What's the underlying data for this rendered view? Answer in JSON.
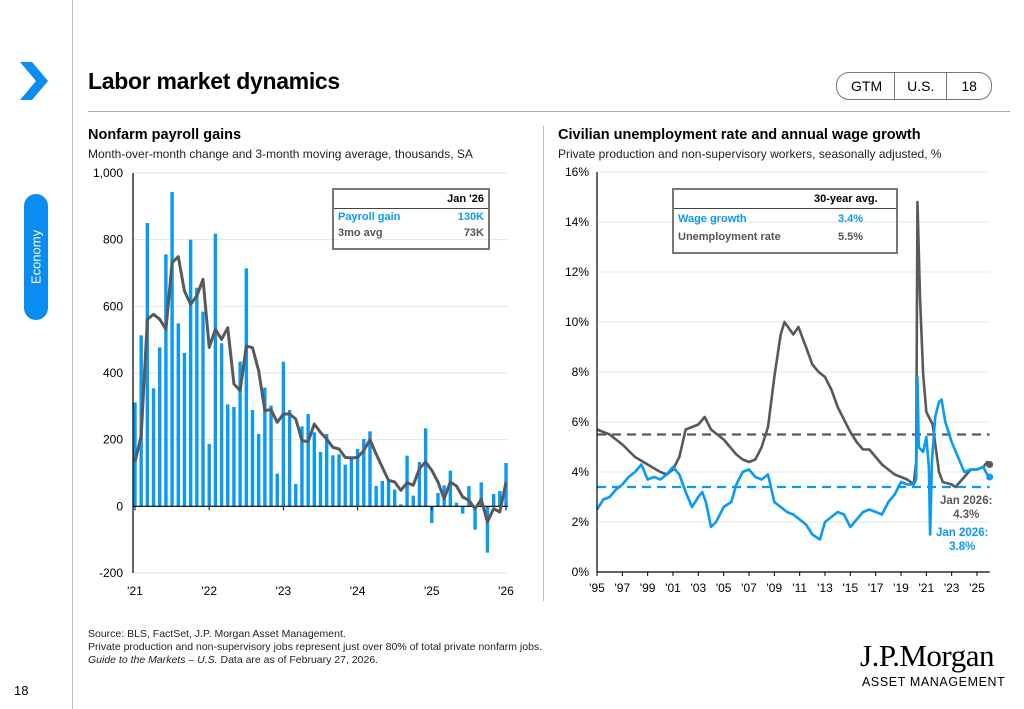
{
  "header": {
    "title": "Labor market dynamics",
    "badge": [
      "GTM",
      "U.S.",
      "18"
    ]
  },
  "sidebar": {
    "section": "Economy",
    "page_number": "18"
  },
  "colors": {
    "accent": "#0a8cf0",
    "blue_series": "#0a99f5",
    "gray_series": "#58595b"
  },
  "left": {
    "title": "Nonfarm payroll gains",
    "subtitle": "Month-over-month change and 3-month moving average, thousands, SA",
    "legend": {
      "header": "Jan '26",
      "rows": [
        {
          "label": "Payroll gain",
          "value": "130K"
        },
        {
          "label": "3mo avg",
          "value": "73K"
        }
      ]
    }
  },
  "right": {
    "title": "Civilian unemployment rate and annual wage growth",
    "subtitle": "Private production and non-supervisory workers, seasonally adjusted, %",
    "legend": {
      "header": "30-year avg.",
      "rows": [
        {
          "label": "Wage growth",
          "value": "3.4%"
        },
        {
          "label": "Unemployment rate",
          "value": "5.5%"
        }
      ]
    },
    "annotations": {
      "unemp_label": "Jan 2026:",
      "unemp_value": "4.3%",
      "wage_label": "Jan 2026:",
      "wage_value": "3.8%"
    }
  },
  "footer": {
    "source": "Source: BLS, FactSet, J.P. Morgan Asset Management.",
    "note": "Private production and non-supervisory jobs represent just over 80% of total private nonfarm jobs.",
    "guide_italic": "Guide to the Markets – U.S.",
    "guide_rest": " Data are as of February 27, 2026."
  },
  "logo": {
    "name": "J.P.Morgan",
    "sub": "ASSET MANAGEMENT"
  },
  "chart_data": [
    {
      "type": "bar",
      "title": "Nonfarm payroll gains",
      "ylim": [
        -200,
        1000
      ],
      "yticks": [
        "-200",
        "0",
        "200",
        "400",
        "600",
        "800",
        "1,000"
      ],
      "xtick_labels": [
        "'21",
        "'22",
        "'23",
        "'24",
        "'25",
        "'26"
      ],
      "series": [
        {
          "name": "Payroll gain",
          "type": "bar",
          "values": [
            312,
            513,
            850,
            354,
            477,
            756,
            943,
            549,
            460,
            800,
            656,
            584,
            187,
            818,
            489,
            306,
            298,
            434,
            714,
            289,
            217,
            356,
            302,
            98,
            434,
            289,
            67,
            240,
            277,
            222,
            163,
            217,
            153,
            156,
            125,
            150,
            172,
            202,
            225,
            61,
            76,
            76,
            50,
            6,
            152,
            32,
            133,
            234,
            -50,
            40,
            63,
            107,
            11,
            -22,
            61,
            -70,
            72,
            -139,
            37,
            46,
            130
          ]
        },
        {
          "name": "3mo avg",
          "type": "line",
          "values": [
            133,
            212,
            561,
            576,
            561,
            531,
            731,
            749,
            646,
            606,
            631,
            681,
            477,
            531,
            501,
            536,
            367,
            347,
            481,
            476,
            407,
            287,
            290,
            252,
            277,
            277,
            262,
            197,
            194,
            247,
            222,
            202,
            177,
            172,
            147,
            145,
            147,
            167,
            200,
            157,
            117,
            78,
            73,
            48,
            71,
            63,
            113,
            133,
            108,
            73,
            23,
            73,
            61,
            28,
            18,
            -7,
            21,
            -47,
            -7,
            -17,
            73
          ]
        }
      ]
    },
    {
      "type": "line",
      "title": "Civilian unemployment rate and annual wage growth",
      "ylim": [
        0,
        16
      ],
      "xlim": [
        1995,
        2026
      ],
      "yticks": [
        "0%",
        "2%",
        "4%",
        "6%",
        "8%",
        "10%",
        "12%",
        "14%",
        "16%"
      ],
      "xtick_labels": [
        "'95",
        "'97",
        "'99",
        "'01",
        "'03",
        "'05",
        "'07",
        "'09",
        "'11",
        "'13",
        "'15",
        "'17",
        "'19",
        "'21",
        "'23",
        "'25"
      ],
      "series": [
        {
          "name": "Unemployment rate",
          "average": 5.5,
          "points": [
            [
              1995,
              5.7
            ],
            [
              1996,
              5.5
            ],
            [
              1996.5,
              5.3
            ],
            [
              1997,
              5.1
            ],
            [
              1998,
              4.6
            ],
            [
              1999,
              4.3
            ],
            [
              2000,
              4.0
            ],
            [
              2000.5,
              3.9
            ],
            [
              2001,
              4.1
            ],
            [
              2001.5,
              4.6
            ],
            [
              2002,
              5.7
            ],
            [
              2002.5,
              5.8
            ],
            [
              2003,
              5.9
            ],
            [
              2003.5,
              6.2
            ],
            [
              2004,
              5.7
            ],
            [
              2005,
              5.3
            ],
            [
              2006,
              4.7
            ],
            [
              2006.5,
              4.5
            ],
            [
              2007,
              4.4
            ],
            [
              2007.5,
              4.5
            ],
            [
              2008,
              5.0
            ],
            [
              2008.5,
              5.8
            ],
            [
              2009,
              7.8
            ],
            [
              2009.5,
              9.5
            ],
            [
              2009.8,
              10.0
            ],
            [
              2010.5,
              9.5
            ],
            [
              2010.9,
              9.8
            ],
            [
              2011.5,
              9.0
            ],
            [
              2012,
              8.3
            ],
            [
              2012.5,
              8.0
            ],
            [
              2013,
              7.8
            ],
            [
              2013.5,
              7.3
            ],
            [
              2014,
              6.6
            ],
            [
              2014.5,
              6.1
            ],
            [
              2015,
              5.6
            ],
            [
              2015.5,
              5.2
            ],
            [
              2016,
              4.9
            ],
            [
              2016.5,
              4.9
            ],
            [
              2017,
              4.6
            ],
            [
              2017.5,
              4.3
            ],
            [
              2018,
              4.1
            ],
            [
              2018.5,
              3.9
            ],
            [
              2019,
              3.8
            ],
            [
              2019.5,
              3.7
            ],
            [
              2020,
              3.5
            ],
            [
              2020.2,
              4.4
            ],
            [
              2020.3,
              14.8
            ],
            [
              2020.5,
              11.0
            ],
            [
              2020.75,
              7.9
            ],
            [
              2021,
              6.4
            ],
            [
              2021.5,
              5.9
            ],
            [
              2022,
              4.0
            ],
            [
              2022.3,
              3.6
            ],
            [
              2023,
              3.5
            ],
            [
              2023.3,
              3.4
            ],
            [
              2024,
              3.8
            ],
            [
              2024.5,
              4.1
            ],
            [
              2025,
              4.1
            ],
            [
              2025.5,
              4.2
            ],
            [
              2025.8,
              4.4
            ],
            [
              2026,
              4.3
            ]
          ]
        },
        {
          "name": "Wage growth",
          "average": 3.4,
          "points": [
            [
              1995,
              2.5
            ],
            [
              1995.5,
              2.9
            ],
            [
              1996,
              3.0
            ],
            [
              1996.5,
              3.3
            ],
            [
              1997,
              3.5
            ],
            [
              1997.5,
              3.8
            ],
            [
              1998,
              4.0
            ],
            [
              1998.5,
              4.3
            ],
            [
              1999,
              3.7
            ],
            [
              1999.5,
              3.8
            ],
            [
              2000,
              3.7
            ],
            [
              2000.5,
              3.9
            ],
            [
              2001,
              4.2
            ],
            [
              2001.5,
              3.9
            ],
            [
              2002,
              3.2
            ],
            [
              2002.5,
              2.6
            ],
            [
              2003,
              3.0
            ],
            [
              2003.3,
              3.2
            ],
            [
              2003.6,
              2.8
            ],
            [
              2004,
              1.8
            ],
            [
              2004.4,
              2.0
            ],
            [
              2005,
              2.6
            ],
            [
              2005.6,
              2.8
            ],
            [
              2006,
              3.5
            ],
            [
              2006.5,
              4.0
            ],
            [
              2007,
              4.1
            ],
            [
              2007.5,
              3.8
            ],
            [
              2008,
              3.7
            ],
            [
              2008.5,
              3.9
            ],
            [
              2009,
              2.8
            ],
            [
              2009.5,
              2.6
            ],
            [
              2010,
              2.4
            ],
            [
              2010.5,
              2.3
            ],
            [
              2011,
              2.1
            ],
            [
              2011.5,
              1.9
            ],
            [
              2012,
              1.5
            ],
            [
              2012.6,
              1.3
            ],
            [
              2013,
              2.0
            ],
            [
              2013.5,
              2.2
            ],
            [
              2014,
              2.4
            ],
            [
              2014.5,
              2.3
            ],
            [
              2015,
              1.8
            ],
            [
              2015.5,
              2.1
            ],
            [
              2016,
              2.4
            ],
            [
              2016.5,
              2.5
            ],
            [
              2017,
              2.4
            ],
            [
              2017.5,
              2.3
            ],
            [
              2018,
              2.8
            ],
            [
              2018.5,
              3.1
            ],
            [
              2019,
              3.6
            ],
            [
              2019.5,
              3.5
            ],
            [
              2020,
              3.5
            ],
            [
              2020.2,
              3.7
            ],
            [
              2020.3,
              7.8
            ],
            [
              2020.4,
              5.0
            ],
            [
              2020.75,
              4.8
            ],
            [
              2021,
              5.4
            ],
            [
              2021.2,
              4.2
            ],
            [
              2021.3,
              1.5
            ],
            [
              2021.45,
              4.5
            ],
            [
              2021.7,
              6.2
            ],
            [
              2022,
              6.8
            ],
            [
              2022.2,
              6.9
            ],
            [
              2022.5,
              6.0
            ],
            [
              2023,
              5.2
            ],
            [
              2023.5,
              4.6
            ],
            [
              2024,
              4.0
            ],
            [
              2024.5,
              4.1
            ],
            [
              2025,
              4.1
            ],
            [
              2025.5,
              4.2
            ],
            [
              2025.8,
              3.9
            ],
            [
              2026,
              3.8
            ]
          ]
        }
      ]
    }
  ]
}
